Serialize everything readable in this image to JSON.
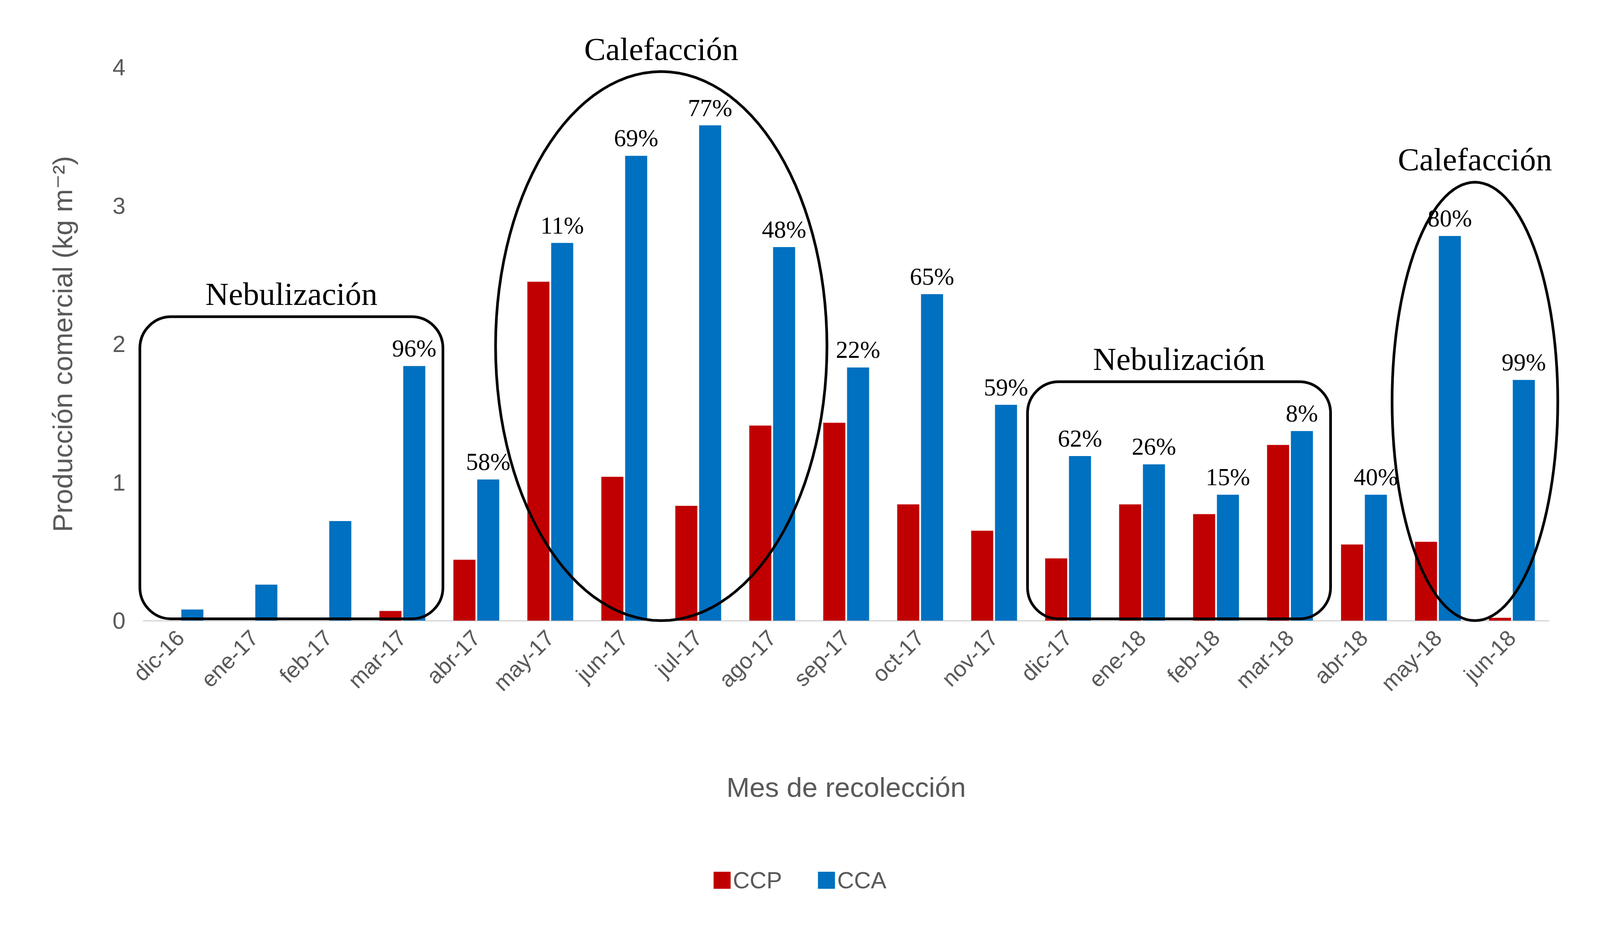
{
  "chart_data": {
    "type": "bar",
    "y_label": "Producción comercial (kg m⁻²)",
    "x_label": "Mes de recolección",
    "categories": [
      "dic-16",
      "ene-17",
      "feb-17",
      "mar-17",
      "abr-17",
      "may-17",
      "jun-17",
      "jul-17",
      "ago-17",
      "sep-17",
      "oct-17",
      "nov-17",
      "dic-17",
      "ene-18",
      "feb-18",
      "mar-18",
      "abr-18",
      "may-18",
      "jun-18"
    ],
    "series": [
      {
        "name": "CCP",
        "color": "#c00000",
        "values": [
          0,
          0,
          0,
          0.07,
          0.44,
          2.45,
          1.04,
          0.83,
          1.41,
          1.43,
          0.84,
          0.65,
          0.45,
          0.84,
          0.77,
          1.27,
          0.55,
          0.57,
          0.02
        ]
      },
      {
        "name": "CCA",
        "color": "#0070c0",
        "values": [
          0.08,
          0.26,
          0.72,
          1.84,
          1.02,
          2.73,
          3.36,
          3.58,
          2.7,
          1.83,
          2.36,
          1.56,
          1.19,
          1.13,
          0.91,
          1.37,
          0.91,
          2.78,
          1.74
        ],
        "annotations": [
          null,
          null,
          null,
          "96%",
          "58%",
          "11%",
          "69%",
          "77%",
          "48%",
          "22%",
          "65%",
          "59%",
          "62%",
          "26%",
          "15%",
          "8%",
          "40%",
          "80%",
          "99%"
        ]
      }
    ],
    "ylim": [
      0,
      4
    ],
    "yticks": [
      0,
      1,
      2,
      3,
      4
    ],
    "grid": false,
    "legend": "bottom",
    "regions": [
      {
        "label": "Nebulización",
        "shape": "box",
        "categories": [
          "dic-16",
          "mar-17"
        ]
      },
      {
        "label": "Calefacción",
        "shape": "ellipse",
        "categories": [
          "may-17",
          "ago-17"
        ]
      },
      {
        "label": "Nebulización",
        "shape": "box",
        "categories": [
          "dic-17",
          "mar-18"
        ]
      },
      {
        "label": "Calefacción",
        "shape": "ellipse",
        "categories": [
          "may-18",
          "jun-18"
        ]
      }
    ]
  }
}
